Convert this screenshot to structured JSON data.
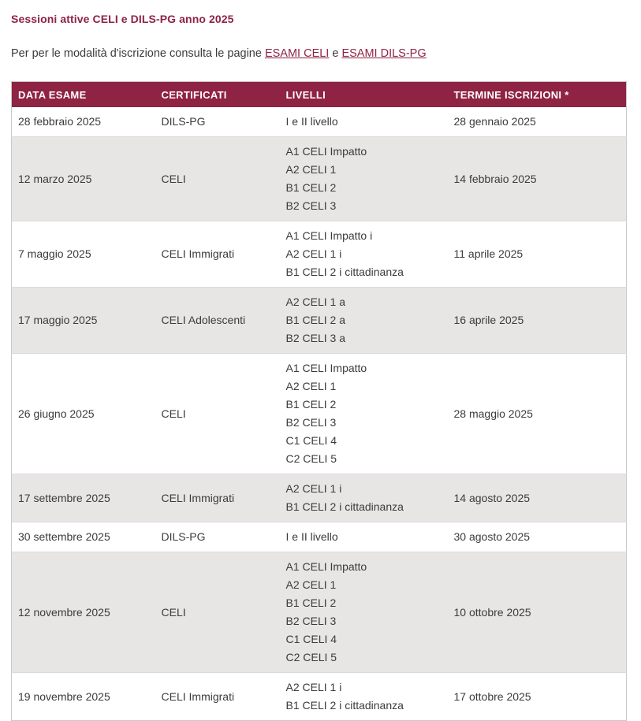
{
  "page": {
    "title": "Sessioni attive CELI e DILS-PG anno 2025",
    "intro": {
      "text_before_links": "Per per le modalità d'iscrizione consulta le pagine ",
      "link_celi": "ESAMI CELI",
      "text_between_links": " e ",
      "link_dils_pg": "ESAMI DILS-PG"
    }
  },
  "colors": {
    "accent_maroon": "#8e2344",
    "row_stripe": "#e8e5e5",
    "table_border": "#c9c9c9",
    "body_text": "#3b3b3b",
    "header_text": "#ffffff"
  },
  "table": {
    "headers": [
      "DATA ESAME",
      "CERTIFICATI",
      "LIVELLI",
      "TERMINE ISCRIZIONI *"
    ],
    "rows": [
      {
        "data_esame": "28 febbraio 2025",
        "certificati": "DILS-PG",
        "livelli": [
          "I e II livello"
        ],
        "termine_iscrizioni": "28 gennaio 2025"
      },
      {
        "data_esame": "12 marzo 2025",
        "certificati": "CELI",
        "livelli": [
          "A1 CELI Impatto",
          "A2 CELI 1",
          "B1 CELI 2",
          "B2 CELI 3"
        ],
        "termine_iscrizioni": "14 febbraio 2025"
      },
      {
        "data_esame": "7 maggio 2025",
        "certificati": "CELI Immigrati",
        "livelli": [
          "A1 CELI Impatto i",
          "A2 CELI 1 i",
          "B1 CELI 2 i cittadinanza"
        ],
        "termine_iscrizioni": "11 aprile 2025"
      },
      {
        "data_esame": "17 maggio 2025",
        "certificati": "CELI Adolescenti",
        "livelli": [
          "A2 CELI 1 a",
          "B1 CELI 2 a",
          "B2 CELI 3 a"
        ],
        "termine_iscrizioni": "16 aprile 2025"
      },
      {
        "data_esame": "26 giugno 2025",
        "certificati": "CELI",
        "livelli": [
          "A1 CELI Impatto",
          "A2 CELI 1",
          "B1 CELI 2",
          "B2 CELI 3",
          "C1 CELI 4",
          "C2 CELI 5"
        ],
        "termine_iscrizioni": "28 maggio 2025"
      },
      {
        "data_esame": "17 settembre 2025",
        "certificati": "CELI Immigrati",
        "livelli": [
          "A2 CELI 1 i",
          "B1 CELI 2 i cittadinanza"
        ],
        "termine_iscrizioni": "14 agosto 2025"
      },
      {
        "data_esame": "30 settembre 2025",
        "certificati": "DILS-PG",
        "livelli": [
          "I e II livello"
        ],
        "termine_iscrizioni": "30 agosto 2025"
      },
      {
        "data_esame": "12 novembre 2025",
        "certificati": "CELI",
        "livelli": [
          "A1 CELI Impatto",
          "A2 CELI 1",
          "B1 CELI 2",
          "B2 CELI 3",
          "C1 CELI 4",
          "C2 CELI 5"
        ],
        "termine_iscrizioni": "10 ottobre 2025"
      },
      {
        "data_esame": "19 novembre 2025",
        "certificati": "CELI Immigrati",
        "livelli": [
          "A2 CELI 1 i",
          "B1 CELI 2 i cittadinanza"
        ],
        "termine_iscrizioni": "17 ottobre 2025"
      }
    ]
  }
}
